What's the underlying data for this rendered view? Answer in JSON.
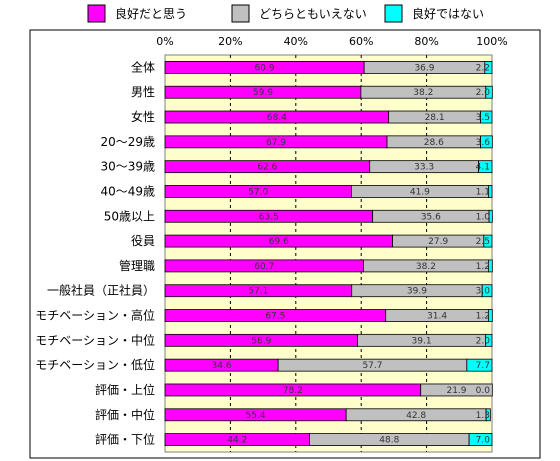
{
  "chart_data": {
    "type": "bar",
    "orientation": "horizontal",
    "stacked": true,
    "xlim": [
      0,
      100
    ],
    "x_ticks": [
      "0%",
      "20%",
      "40%",
      "60%",
      "80%",
      "100%"
    ],
    "categories": [
      "全体",
      "男性",
      "女性",
      "20～29歳",
      "30～39歳",
      "40～49歳",
      "50歳以上",
      "役員",
      "管理職",
      "一般社員（正社員）",
      "モチベーション・高位",
      "モチベーション・中位",
      "モチベーション・低位",
      "評価・上位",
      "評価・中位",
      "評価・下位"
    ],
    "series": [
      {
        "name": "良好だと思う",
        "color": "#ff00ff",
        "values": [
          60.9,
          59.9,
          68.4,
          67.9,
          62.6,
          57.0,
          63.5,
          69.6,
          60.7,
          57.1,
          67.5,
          58.9,
          34.6,
          78.2,
          55.4,
          44.2
        ]
      },
      {
        "name": "どちらともいえない",
        "color": "#c0c0c0",
        "values": [
          36.9,
          38.2,
          28.1,
          28.6,
          33.3,
          41.9,
          35.6,
          27.9,
          38.2,
          39.9,
          31.4,
          39.1,
          57.7,
          21.9,
          42.8,
          48.8
        ]
      },
      {
        "name": "良好ではない",
        "color": "#00ffff",
        "values": [
          2.2,
          2.0,
          3.5,
          3.6,
          4.1,
          1.1,
          1.0,
          2.5,
          1.2,
          3.0,
          1.2,
          2.0,
          7.7,
          0.0,
          1.3,
          7.0
        ]
      }
    ],
    "value_labels": [
      [
        "60.9",
        "36.9",
        "2.2"
      ],
      [
        "59.9",
        "38.2",
        "2.0"
      ],
      [
        "68.4",
        "28.1",
        "3.5"
      ],
      [
        "67.9",
        "28.6",
        "3.6"
      ],
      [
        "62.6",
        "33.3",
        "4.1"
      ],
      [
        "57.0",
        "41.9",
        "1.1"
      ],
      [
        "63.5",
        "35.6",
        "1.0"
      ],
      [
        "69.6",
        "27.9",
        "2.5"
      ],
      [
        "60.7",
        "38.2",
        "1.2"
      ],
      [
        "57.1",
        "39.9",
        "3.0"
      ],
      [
        "67.5",
        "31.4",
        "1.2"
      ],
      [
        "58.9",
        "39.1",
        "2.0"
      ],
      [
        "34.6",
        "57.7",
        "7.7"
      ],
      [
        "78.2",
        "21.9",
        "0.0"
      ],
      [
        "55.4",
        "42.8",
        "1.3"
      ],
      [
        "44.2",
        "48.8",
        "7.0"
      ]
    ],
    "grid": true,
    "legend": "top",
    "plot_background": "#ffffcc"
  }
}
